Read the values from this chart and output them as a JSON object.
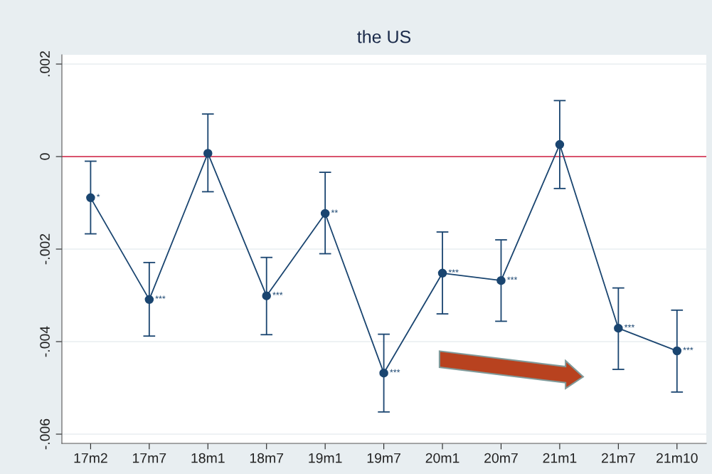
{
  "chart_data": {
    "type": "line",
    "title": "the US",
    "categories": [
      "17m2",
      "17m7",
      "18m1",
      "18m7",
      "19m1",
      "19m7",
      "20m1",
      "20m7",
      "21m1",
      "21m7",
      "21m10"
    ],
    "series": [
      {
        "color": "#1a4570",
        "values": [
          -0.00089,
          -0.00309,
          7e-05,
          -0.00301,
          -0.00123,
          -0.00468,
          -0.00252,
          -0.00268,
          0.00026,
          -0.00371,
          -0.0042
        ],
        "errors": [
          [
            -0.00167,
            -0.0001
          ],
          [
            -0.00388,
            -0.00229
          ],
          [
            -0.00076,
            0.00092
          ],
          [
            -0.00385,
            -0.00218
          ],
          [
            -0.0021,
            -0.00034
          ],
          [
            -0.00552,
            -0.00384
          ],
          [
            -0.0034,
            -0.00163
          ],
          [
            -0.00356,
            -0.0018
          ],
          [
            -0.00069,
            0.00121
          ],
          [
            -0.0046,
            -0.00284
          ],
          [
            -0.00509,
            -0.00332
          ]
        ],
        "value_labels": [
          "*",
          "***",
          null,
          "***",
          "**",
          "***",
          "***",
          "***",
          null,
          "***",
          "***"
        ]
      }
    ],
    "ylim": [
      -0.0062,
      0.0022
    ],
    "yticks": [
      {
        "value": -0.006,
        "label": "-.006"
      },
      {
        "value": -0.004,
        "label": "-.004"
      },
      {
        "value": -0.002,
        "label": "-.002"
      },
      {
        "value": 0,
        "label": "0"
      },
      {
        "value": 0.002,
        "label": ".002"
      }
    ],
    "ref_lines": [
      {
        "axis": "y",
        "value": 0,
        "color": "#d9546e"
      }
    ],
    "grid": "y",
    "marker": "circle",
    "line_style": "solid"
  }
}
